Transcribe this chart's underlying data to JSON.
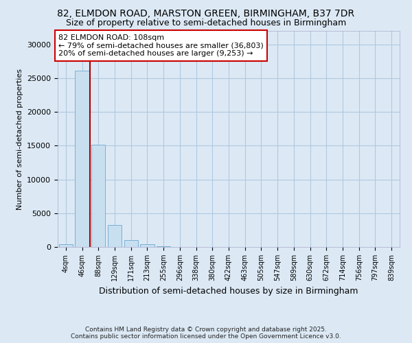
{
  "title_line1": "82, ELMDON ROAD, MARSTON GREEN, BIRMINGHAM, B37 7DR",
  "title_line2": "Size of property relative to semi-detached houses in Birmingham",
  "xlabel": "Distribution of semi-detached houses by size in Birmingham",
  "ylabel": "Number of semi-detached properties",
  "footer_line1": "Contains HM Land Registry data © Crown copyright and database right 2025.",
  "footer_line2": "Contains public sector information licensed under the Open Government Licence v3.0.",
  "bin_labels": [
    "4sqm",
    "46sqm",
    "88sqm",
    "129sqm",
    "171sqm",
    "213sqm",
    "255sqm",
    "296sqm",
    "338sqm",
    "380sqm",
    "422sqm",
    "463sqm",
    "505sqm",
    "547sqm",
    "589sqm",
    "630sqm",
    "672sqm",
    "714sqm",
    "756sqm",
    "797sqm",
    "839sqm"
  ],
  "bar_values": [
    400,
    26100,
    15100,
    3300,
    1000,
    450,
    150,
    30,
    5,
    3,
    2,
    1,
    1,
    1,
    1,
    1,
    1,
    1,
    1,
    1,
    0
  ],
  "bar_color": "#c8dff0",
  "bar_edge_color": "#7bafd4",
  "property_line_x": 1.5,
  "property_line_color": "#aa0000",
  "annotation_text_line1": "82 ELMDON ROAD: 108sqm",
  "annotation_text_line2": "← 79% of semi-detached houses are smaller (36,803)",
  "annotation_text_line3": "20% of semi-detached houses are larger (9,253) →",
  "annotation_box_color": "#ffffff",
  "annotation_box_edge": "#cc0000",
  "ylim": [
    0,
    32000
  ],
  "yticks": [
    0,
    5000,
    10000,
    15000,
    20000,
    25000,
    30000
  ],
  "background_color": "#dce9f5",
  "plot_background": "#dce9f5",
  "grid_color": "#b0c8e0",
  "title_fontsize": 10,
  "subtitle_fontsize": 9,
  "annotation_fontsize": 8
}
